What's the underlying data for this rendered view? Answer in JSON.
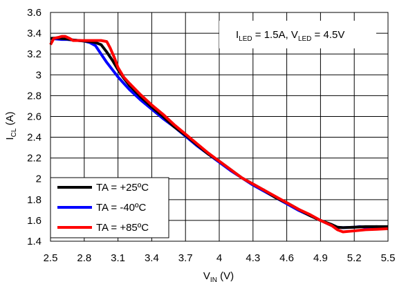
{
  "chart_data": {
    "type": "line",
    "title": "",
    "xlabel": {
      "main": "V",
      "sub": "IN",
      "rest": " (V)"
    },
    "ylabel": {
      "main": "I",
      "sub": "CL",
      "rest": " (A)"
    },
    "xlim": [
      2.5,
      5.5
    ],
    "ylim": [
      1.4,
      3.6
    ],
    "x_ticks": [
      "2.5",
      "2.8",
      "3.1",
      "3.4",
      "3.7",
      "4",
      "4.3",
      "4.6",
      "4.9",
      "5.2",
      "5.5"
    ],
    "y_ticks": [
      "1.4",
      "1.6",
      "1.8",
      "2",
      "2.2",
      "2.4",
      "2.6",
      "2.8",
      "3",
      "3.2",
      "3.4",
      "3.6"
    ],
    "grid": true,
    "legend_position": "bottom-left",
    "annotation": {
      "p1_main": "I",
      "p1_sub": "LED",
      "p1_rest": " = 1.5A, ",
      "p2_main": "V",
      "p2_sub": "LED",
      "p2_rest": " = 4.5V"
    },
    "series": [
      {
        "name": "TA = +25ºC",
        "color": "#000000",
        "points": [
          [
            2.5,
            3.35
          ],
          [
            2.55,
            3.355
          ],
          [
            2.6,
            3.35
          ],
          [
            2.65,
            3.345
          ],
          [
            2.7,
            3.335
          ],
          [
            2.75,
            3.33
          ],
          [
            2.8,
            3.325
          ],
          [
            2.85,
            3.32
          ],
          [
            2.9,
            3.31
          ],
          [
            2.95,
            3.29
          ],
          [
            3.0,
            3.22
          ],
          [
            3.05,
            3.14
          ],
          [
            3.1,
            3.05
          ],
          [
            3.15,
            2.97
          ],
          [
            3.2,
            2.9
          ],
          [
            3.3,
            2.79
          ],
          [
            3.4,
            2.69
          ],
          [
            3.5,
            2.6
          ],
          [
            3.6,
            2.5
          ],
          [
            3.7,
            2.42
          ],
          [
            3.8,
            2.33
          ],
          [
            3.9,
            2.24
          ],
          [
            4.0,
            2.17
          ],
          [
            4.1,
            2.09
          ],
          [
            4.2,
            2.01
          ],
          [
            4.3,
            1.95
          ],
          [
            4.4,
            1.89
          ],
          [
            4.5,
            1.82
          ],
          [
            4.6,
            1.77
          ],
          [
            4.7,
            1.71
          ],
          [
            4.8,
            1.65
          ],
          [
            4.9,
            1.6
          ],
          [
            5.0,
            1.56
          ],
          [
            5.05,
            1.535
          ],
          [
            5.1,
            1.53
          ],
          [
            5.2,
            1.535
          ],
          [
            5.3,
            1.54
          ],
          [
            5.4,
            1.54
          ],
          [
            5.5,
            1.54
          ]
        ]
      },
      {
        "name": "TA = -40ºC",
        "color": "#0000ff",
        "points": [
          [
            2.5,
            3.35
          ],
          [
            2.55,
            3.345
          ],
          [
            2.6,
            3.34
          ],
          [
            2.65,
            3.34
          ],
          [
            2.7,
            3.335
          ],
          [
            2.75,
            3.33
          ],
          [
            2.8,
            3.325
          ],
          [
            2.85,
            3.31
          ],
          [
            2.9,
            3.28
          ],
          [
            2.95,
            3.2
          ],
          [
            3.0,
            3.12
          ],
          [
            3.05,
            3.05
          ],
          [
            3.1,
            2.98
          ],
          [
            3.15,
            2.92
          ],
          [
            3.2,
            2.86
          ],
          [
            3.3,
            2.76
          ],
          [
            3.4,
            2.67
          ],
          [
            3.5,
            2.58
          ],
          [
            3.6,
            2.5
          ],
          [
            3.7,
            2.41
          ],
          [
            3.8,
            2.32
          ],
          [
            3.9,
            2.24
          ],
          [
            4.0,
            2.16
          ],
          [
            4.1,
            2.08
          ],
          [
            4.2,
            2.01
          ],
          [
            4.3,
            1.94
          ],
          [
            4.4,
            1.88
          ],
          [
            4.5,
            1.82
          ],
          [
            4.6,
            1.76
          ],
          [
            4.7,
            1.7
          ],
          [
            4.8,
            1.65
          ],
          [
            4.9,
            1.6
          ],
          [
            5.0,
            1.55
          ],
          [
            5.05,
            1.535
          ],
          [
            5.1,
            1.53
          ],
          [
            5.2,
            1.535
          ],
          [
            5.25,
            1.54
          ],
          [
            5.3,
            1.535
          ],
          [
            5.4,
            1.54
          ],
          [
            5.5,
            1.53
          ]
        ]
      },
      {
        "name": "TA = +85ºC",
        "color": "#ff0000",
        "points": [
          [
            2.5,
            3.29
          ],
          [
            2.53,
            3.35
          ],
          [
            2.57,
            3.36
          ],
          [
            2.6,
            3.37
          ],
          [
            2.63,
            3.37
          ],
          [
            2.67,
            3.35
          ],
          [
            2.7,
            3.33
          ],
          [
            2.8,
            3.33
          ],
          [
            2.9,
            3.33
          ],
          [
            2.95,
            3.33
          ],
          [
            3.0,
            3.32
          ],
          [
            3.03,
            3.26
          ],
          [
            3.07,
            3.16
          ],
          [
            3.1,
            3.07
          ],
          [
            3.15,
            2.98
          ],
          [
            3.2,
            2.92
          ],
          [
            3.3,
            2.81
          ],
          [
            3.4,
            2.71
          ],
          [
            3.5,
            2.62
          ],
          [
            3.6,
            2.52
          ],
          [
            3.7,
            2.43
          ],
          [
            3.8,
            2.34
          ],
          [
            3.9,
            2.25
          ],
          [
            4.0,
            2.17
          ],
          [
            4.1,
            2.09
          ],
          [
            4.2,
            2.01
          ],
          [
            4.3,
            1.95
          ],
          [
            4.4,
            1.89
          ],
          [
            4.5,
            1.83
          ],
          [
            4.6,
            1.77
          ],
          [
            4.7,
            1.71
          ],
          [
            4.8,
            1.66
          ],
          [
            4.9,
            1.6
          ],
          [
            5.0,
            1.55
          ],
          [
            5.05,
            1.51
          ],
          [
            5.1,
            1.49
          ],
          [
            5.2,
            1.5
          ],
          [
            5.3,
            1.51
          ],
          [
            5.4,
            1.515
          ],
          [
            5.5,
            1.52
          ]
        ]
      }
    ]
  }
}
